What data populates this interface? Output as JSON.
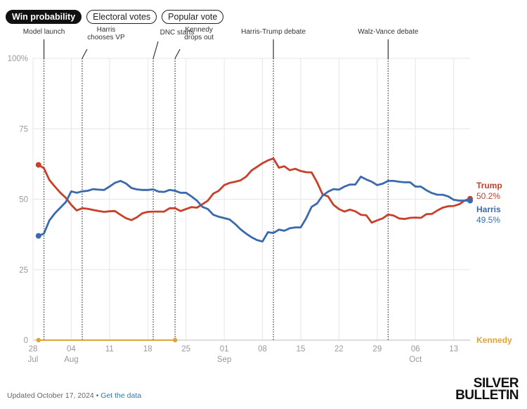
{
  "tabs": [
    {
      "label": "Win probability",
      "active": true
    },
    {
      "label": "Electoral votes",
      "active": false
    },
    {
      "label": "Popular vote",
      "active": false
    }
  ],
  "chart_data": {
    "type": "line",
    "title": "Win probability",
    "ylim": [
      0,
      100
    ],
    "yticks": [
      0,
      25,
      50,
      75,
      100
    ],
    "ytick_labels": [
      "0",
      "25",
      "50",
      "75",
      "100%"
    ],
    "x_domain_day_offsets": [
      0,
      80
    ],
    "x_note": "x values are days since Jul 28, 2024",
    "xticks": [
      {
        "day": 0,
        "label": "28",
        "sublabel": "Jul"
      },
      {
        "day": 7,
        "label": "04",
        "sublabel": "Aug"
      },
      {
        "day": 14,
        "label": "11",
        "sublabel": ""
      },
      {
        "day": 21,
        "label": "18",
        "sublabel": ""
      },
      {
        "day": 28,
        "label": "25",
        "sublabel": ""
      },
      {
        "day": 35,
        "label": "01",
        "sublabel": "Sep"
      },
      {
        "day": 42,
        "label": "08",
        "sublabel": ""
      },
      {
        "day": 49,
        "label": "15",
        "sublabel": ""
      },
      {
        "day": 56,
        "label": "22",
        "sublabel": ""
      },
      {
        "day": 63,
        "label": "29",
        "sublabel": ""
      },
      {
        "day": 70,
        "label": "06",
        "sublabel": "Oct"
      },
      {
        "day": 77,
        "label": "13",
        "sublabel": ""
      }
    ],
    "annotations": [
      {
        "label": "Model launch",
        "lines": [
          "Model launch"
        ],
        "day": 2,
        "style": "straight"
      },
      {
        "label": "Harris chooses VP",
        "lines": [
          "Harris",
          "chooses VP"
        ],
        "day": 9,
        "style": "slanted"
      },
      {
        "label": "DNC starts",
        "lines": [
          "DNC starts"
        ],
        "day": 22,
        "style": "slanted"
      },
      {
        "label": "Kennedy drops out",
        "lines": [
          "Kennedy",
          "drops out"
        ],
        "day": 26,
        "style": "slanted"
      },
      {
        "label": "Harris-Trump debate",
        "lines": [
          "Harris-Trump debate"
        ],
        "day": 44,
        "style": "straight"
      },
      {
        "label": "Walz-Vance debate",
        "lines": [
          "Walz-Vance debate"
        ],
        "day": 65,
        "style": "straight"
      }
    ],
    "series": [
      {
        "name": "Trump",
        "color": "#c8402a",
        "end_label": "Trump",
        "end_value": "50.2%",
        "x": [
          1,
          2,
          3,
          4,
          5,
          6,
          7,
          8,
          9,
          10,
          11,
          12,
          13,
          14,
          15,
          16,
          17,
          18,
          19,
          20,
          21,
          22,
          23,
          24,
          25,
          26,
          27,
          28,
          29,
          30,
          31,
          32,
          33,
          34,
          35,
          36,
          37,
          38,
          39,
          40,
          41,
          42,
          43,
          44,
          45,
          46,
          47,
          48,
          49,
          50,
          51,
          52,
          53,
          54,
          55,
          56,
          57,
          58,
          59,
          60,
          61,
          62,
          63,
          64,
          65,
          66,
          67,
          68,
          69,
          70,
          71,
          72,
          73,
          74,
          75,
          76,
          77,
          78,
          79,
          80
        ],
        "values": [
          62.2,
          61,
          56.8,
          54.5,
          52.3,
          50.5,
          48,
          46,
          46.8,
          46.6,
          46.2,
          45.8,
          45.5,
          45.7,
          45.8,
          44.5,
          43.3,
          42.6,
          43.6,
          45,
          45.5,
          45.6,
          45.6,
          45.6,
          46.8,
          46.8,
          45.8,
          46.5,
          47.2,
          47,
          48.2,
          49.5,
          52,
          53,
          55,
          55.8,
          56.2,
          56.7,
          58,
          60.2,
          61.5,
          62.8,
          63.8,
          64.5,
          61.2,
          61.7,
          60.3,
          60.8,
          60,
          59.6,
          59.5,
          56,
          51.7,
          51,
          48,
          46.5,
          45.6,
          46.3,
          45.7,
          44.5,
          44.3,
          41.7,
          42.5,
          43.2,
          44.6,
          44.2,
          43.2,
          43,
          43.4,
          43.5,
          43.4,
          44.7,
          44.8,
          46,
          47,
          47.5,
          47.6,
          48.2,
          49.5,
          50.2
        ]
      },
      {
        "name": "Harris",
        "color": "#3a6aad",
        "end_label": "Harris",
        "end_value": "49.5%",
        "x": [
          1,
          2,
          3,
          4,
          5,
          6,
          7,
          8,
          9,
          10,
          11,
          12,
          13,
          14,
          15,
          16,
          17,
          18,
          19,
          20,
          21,
          22,
          23,
          24,
          25,
          26,
          27,
          28,
          29,
          30,
          31,
          32,
          33,
          34,
          35,
          36,
          37,
          38,
          39,
          40,
          41,
          42,
          43,
          44,
          45,
          46,
          47,
          48,
          49,
          50,
          51,
          52,
          53,
          54,
          55,
          56,
          57,
          58,
          59,
          60,
          61,
          62,
          63,
          64,
          65,
          66,
          67,
          68,
          69,
          70,
          71,
          72,
          73,
          74,
          75,
          76,
          77,
          78,
          79,
          80
        ],
        "values": [
          37,
          37.8,
          42.5,
          45,
          47,
          49,
          52.8,
          52.3,
          52.8,
          53,
          53.6,
          53.4,
          53.3,
          54.5,
          55.8,
          56.5,
          55.6,
          54,
          53.5,
          53.3,
          53.3,
          53.5,
          52.7,
          52.6,
          53.3,
          53,
          52.3,
          52.3,
          51,
          49.5,
          47.3,
          46.5,
          44.5,
          43.8,
          43.3,
          42.8,
          41.2,
          39.3,
          37.8,
          36.5,
          35.5,
          35,
          38.3,
          38,
          39.2,
          38.8,
          39.7,
          40,
          40,
          43.3,
          47.3,
          48.5,
          51.3,
          52.7,
          53.6,
          53.4,
          54.5,
          55.2,
          55.2,
          58,
          57,
          56.2,
          55,
          55.5,
          56.5,
          56.5,
          56.2,
          56,
          56,
          54.5,
          54.5,
          53.2,
          52.2,
          51.6,
          51.6,
          51,
          49.8,
          49.5,
          49.5,
          49.5
        ]
      },
      {
        "name": "Kennedy",
        "color": "#e0a33a",
        "end_label": "Kennedy",
        "end_value": "",
        "x": [
          1,
          26
        ],
        "values": [
          0,
          0
        ]
      }
    ]
  },
  "footer": {
    "updated": "Updated October 17, 2024",
    "separator": "•",
    "link_label": "Get the data"
  },
  "logo": {
    "line1": "SILVER",
    "line2": "BULLETIN"
  }
}
